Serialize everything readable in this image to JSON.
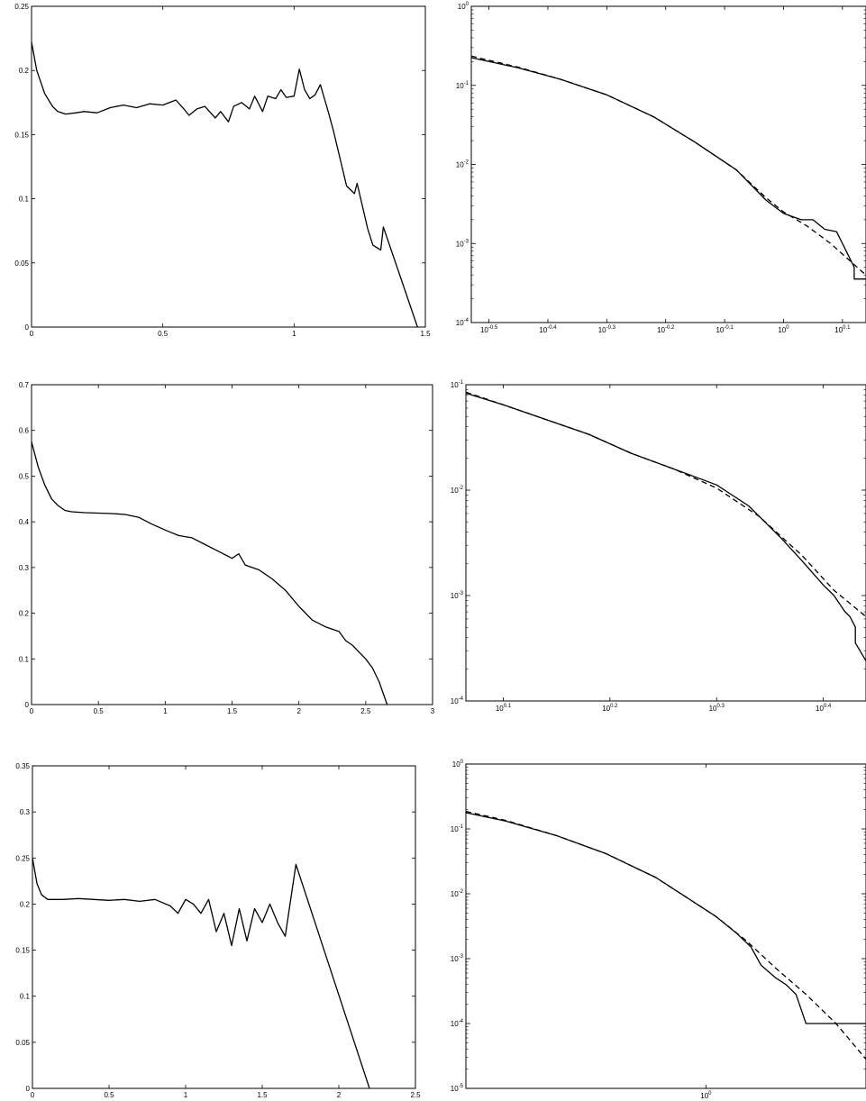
{
  "chart_data": [
    {
      "type": "line",
      "panel": "top-left",
      "xscale": "linear",
      "yscale": "linear",
      "xlim": [
        0,
        1.5
      ],
      "ylim": [
        0,
        0.25
      ],
      "xticks": [
        0,
        0.5,
        1,
        1.5
      ],
      "xtick_labels": [
        "0",
        "0.5",
        "1",
        "1.5"
      ],
      "yticks": [
        0,
        0.05,
        0.1,
        0.15,
        0.2,
        0.25
      ],
      "ytick_labels": [
        "0",
        "0.05",
        "0.1",
        "0.15",
        "0.2",
        "0.25"
      ],
      "series": [
        {
          "style": "solid",
          "x": [
            0,
            0.02,
            0.05,
            0.08,
            0.1,
            0.13,
            0.17,
            0.2,
            0.25,
            0.3,
            0.35,
            0.4,
            0.45,
            0.5,
            0.55,
            0.58,
            0.6,
            0.63,
            0.66,
            0.7,
            0.72,
            0.75,
            0.77,
            0.8,
            0.83,
            0.85,
            0.88,
            0.9,
            0.93,
            0.95,
            0.97,
            1.0,
            1.02,
            1.04,
            1.06,
            1.08,
            1.1,
            1.13,
            1.15,
            1.2,
            1.23,
            1.24,
            1.28,
            1.3,
            1.33,
            1.34,
            1.47
          ],
          "y": [
            0.222,
            0.2,
            0.182,
            0.172,
            0.168,
            0.166,
            0.167,
            0.168,
            0.167,
            0.171,
            0.173,
            0.171,
            0.174,
            0.173,
            0.177,
            0.17,
            0.165,
            0.17,
            0.172,
            0.163,
            0.168,
            0.16,
            0.172,
            0.175,
            0.17,
            0.18,
            0.168,
            0.18,
            0.178,
            0.185,
            0.179,
            0.18,
            0.201,
            0.185,
            0.178,
            0.181,
            0.189,
            0.168,
            0.153,
            0.11,
            0.104,
            0.112,
            0.077,
            0.064,
            0.06,
            0.078,
            0.0
          ]
        }
      ]
    },
    {
      "type": "line",
      "panel": "top-right",
      "xscale": "log",
      "yscale": "log",
      "xlim_log10": [
        -0.53,
        0.14
      ],
      "ylim_log10": [
        -4,
        0
      ],
      "xtick_labels": [
        {
          "base": "10",
          "exp": "-0.5"
        },
        {
          "base": "10",
          "exp": "-0.4"
        },
        {
          "base": "10",
          "exp": "-0.3"
        },
        {
          "base": "10",
          "exp": "-0.2"
        },
        {
          "base": "10",
          "exp": "-0.1"
        },
        {
          "base": "10",
          "exp": "0"
        },
        {
          "base": "10",
          "exp": "0.1"
        }
      ],
      "ytick_labels": [
        {
          "base": "10",
          "exp": "-4"
        },
        {
          "base": "10",
          "exp": "-3"
        },
        {
          "base": "10",
          "exp": "-2"
        },
        {
          "base": "10",
          "exp": "-1"
        },
        {
          "base": "10",
          "exp": "0"
        }
      ],
      "series": [
        {
          "style": "solid",
          "x_log10": [
            -0.53,
            -0.45,
            -0.38,
            -0.3,
            -0.22,
            -0.15,
            -0.08,
            -0.03,
            0.0,
            0.03,
            0.05,
            0.07,
            0.09,
            0.1,
            0.12,
            0.12,
            0.14
          ],
          "y_log10": [
            -0.65,
            -0.78,
            -0.92,
            -1.12,
            -1.4,
            -1.72,
            -2.07,
            -2.45,
            -2.62,
            -2.7,
            -2.7,
            -2.82,
            -2.85,
            -3.0,
            -3.3,
            -3.45,
            -3.45
          ]
        },
        {
          "style": "dashed",
          "x_log10": [
            -0.53,
            -0.45,
            -0.38,
            -0.3,
            -0.22,
            -0.15,
            -0.08,
            -0.03,
            0.0,
            0.04,
            0.08,
            0.14
          ],
          "y_log10": [
            -0.63,
            -0.77,
            -0.92,
            -1.12,
            -1.4,
            -1.72,
            -2.07,
            -2.42,
            -2.6,
            -2.78,
            -3.0,
            -3.4
          ]
        }
      ]
    },
    {
      "type": "line",
      "panel": "middle-left",
      "xscale": "linear",
      "yscale": "linear",
      "xlim": [
        0,
        3
      ],
      "ylim": [
        0,
        0.7
      ],
      "xticks": [
        0,
        0.5,
        1,
        1.5,
        2,
        2.5,
        3
      ],
      "xtick_labels": [
        "0",
        "0.5",
        "1",
        "1.5",
        "2",
        "2.5",
        "3"
      ],
      "yticks": [
        0,
        0.1,
        0.2,
        0.3,
        0.4,
        0.5,
        0.6,
        0.7
      ],
      "ytick_labels": [
        "0",
        "0.1",
        "0.2",
        "0.3",
        "0.4",
        "0.5",
        "0.6",
        "0.7"
      ],
      "series": [
        {
          "style": "solid",
          "x": [
            0,
            0.05,
            0.1,
            0.15,
            0.2,
            0.25,
            0.3,
            0.4,
            0.5,
            0.6,
            0.7,
            0.8,
            0.9,
            1.0,
            1.1,
            1.2,
            1.3,
            1.4,
            1.5,
            1.55,
            1.6,
            1.7,
            1.8,
            1.9,
            2.0,
            2.1,
            2.2,
            2.3,
            2.35,
            2.4,
            2.5,
            2.55,
            2.6,
            2.66
          ],
          "y": [
            0.575,
            0.52,
            0.48,
            0.45,
            0.435,
            0.425,
            0.422,
            0.42,
            0.419,
            0.418,
            0.416,
            0.41,
            0.395,
            0.382,
            0.37,
            0.365,
            0.35,
            0.335,
            0.32,
            0.33,
            0.305,
            0.295,
            0.275,
            0.25,
            0.215,
            0.185,
            0.17,
            0.16,
            0.14,
            0.13,
            0.1,
            0.08,
            0.05,
            0.0
          ]
        }
      ]
    },
    {
      "type": "line",
      "panel": "middle-right",
      "xscale": "log",
      "yscale": "log",
      "xlim_log10": [
        0.065,
        0.44
      ],
      "ylim_log10": [
        -4,
        -1
      ],
      "xtick_labels": [
        {
          "base": "10",
          "exp": "0.1"
        },
        {
          "base": "10",
          "exp": "0.2"
        },
        {
          "base": "10",
          "exp": "0.3"
        },
        {
          "base": "10",
          "exp": "0.4"
        }
      ],
      "ytick_labels": [
        {
          "base": "10",
          "exp": "-4"
        },
        {
          "base": "10",
          "exp": "-3"
        },
        {
          "base": "10",
          "exp": "-2"
        },
        {
          "base": "10",
          "exp": "-1"
        }
      ],
      "series": [
        {
          "style": "solid",
          "x_log10": [
            0.065,
            0.1,
            0.14,
            0.18,
            0.22,
            0.26,
            0.3,
            0.33,
            0.36,
            0.38,
            0.4,
            0.41,
            0.42,
            0.425,
            0.43,
            0.43,
            0.44
          ],
          "y_log10": [
            -1.08,
            -1.19,
            -1.33,
            -1.47,
            -1.65,
            -1.8,
            -1.95,
            -2.15,
            -2.45,
            -2.67,
            -2.9,
            -3.0,
            -3.15,
            -3.2,
            -3.3,
            -3.45,
            -3.62
          ]
        },
        {
          "style": "dashed",
          "x_log10": [
            0.065,
            0.1,
            0.14,
            0.18,
            0.22,
            0.26,
            0.3,
            0.34,
            0.38,
            0.41,
            0.44
          ],
          "y_log10": [
            -1.07,
            -1.19,
            -1.33,
            -1.47,
            -1.65,
            -1.8,
            -1.98,
            -2.25,
            -2.62,
            -2.95,
            -3.2
          ]
        }
      ]
    },
    {
      "type": "line",
      "panel": "bottom-left",
      "xscale": "linear",
      "yscale": "linear",
      "xlim": [
        0,
        2.5
      ],
      "ylim": [
        0,
        0.35
      ],
      "xticks": [
        0,
        0.5,
        1,
        1.5,
        2,
        2.5
      ],
      "xtick_labels": [
        "0",
        "0.5",
        "1",
        "1.5",
        "2",
        "2.5"
      ],
      "yticks": [
        0,
        0.05,
        0.1,
        0.15,
        0.2,
        0.25,
        0.3,
        0.35
      ],
      "ytick_labels": [
        "0",
        "0.05",
        "0.1",
        "0.15",
        "0.2",
        "0.25",
        "0.3",
        "0.35"
      ],
      "series": [
        {
          "style": "solid",
          "x": [
            0,
            0.03,
            0.06,
            0.1,
            0.15,
            0.2,
            0.3,
            0.4,
            0.5,
            0.6,
            0.7,
            0.8,
            0.9,
            0.95,
            1.0,
            1.05,
            1.1,
            1.15,
            1.2,
            1.25,
            1.3,
            1.35,
            1.4,
            1.45,
            1.5,
            1.55,
            1.6,
            1.65,
            1.72,
            2.2
          ],
          "y": [
            0.25,
            0.222,
            0.21,
            0.205,
            0.205,
            0.205,
            0.206,
            0.205,
            0.204,
            0.205,
            0.203,
            0.205,
            0.198,
            0.19,
            0.205,
            0.2,
            0.19,
            0.205,
            0.17,
            0.19,
            0.155,
            0.195,
            0.16,
            0.195,
            0.18,
            0.2,
            0.18,
            0.165,
            0.243,
            0.0
          ]
        }
      ]
    },
    {
      "type": "line",
      "panel": "bottom-right",
      "xscale": "log",
      "yscale": "log",
      "xlim_log10": [
        -0.24,
        0.16
      ],
      "ylim_log10": [
        -5,
        0
      ],
      "xtick_labels": [
        {
          "base": "10",
          "exp": "0"
        }
      ],
      "ytick_labels": [
        {
          "base": "10",
          "exp": "-5"
        },
        {
          "base": "10",
          "exp": "-4"
        },
        {
          "base": "10",
          "exp": "-3"
        },
        {
          "base": "10",
          "exp": "-2"
        },
        {
          "base": "10",
          "exp": "-1"
        },
        {
          "base": "10",
          "exp": "0"
        }
      ],
      "series": [
        {
          "style": "solid",
          "x_log10": [
            -0.24,
            -0.2,
            -0.15,
            -0.1,
            -0.05,
            -0.02,
            0.01,
            0.03,
            0.045,
            0.055,
            0.07,
            0.08,
            0.09,
            0.1,
            0.12,
            0.16
          ],
          "y_log10": [
            -0.75,
            -0.88,
            -1.1,
            -1.38,
            -1.75,
            -2.05,
            -2.35,
            -2.6,
            -2.82,
            -3.1,
            -3.3,
            -3.4,
            -3.55,
            -4.0,
            -4.0,
            -4.0
          ]
        },
        {
          "style": "dashed",
          "x_log10": [
            -0.24,
            -0.2,
            -0.15,
            -0.1,
            -0.05,
            -0.02,
            0.01,
            0.04,
            0.07,
            0.1,
            0.13,
            0.16
          ],
          "y_log10": [
            -0.73,
            -0.87,
            -1.1,
            -1.38,
            -1.75,
            -2.05,
            -2.35,
            -2.72,
            -3.15,
            -3.55,
            -4.0,
            -4.55
          ]
        }
      ]
    }
  ]
}
